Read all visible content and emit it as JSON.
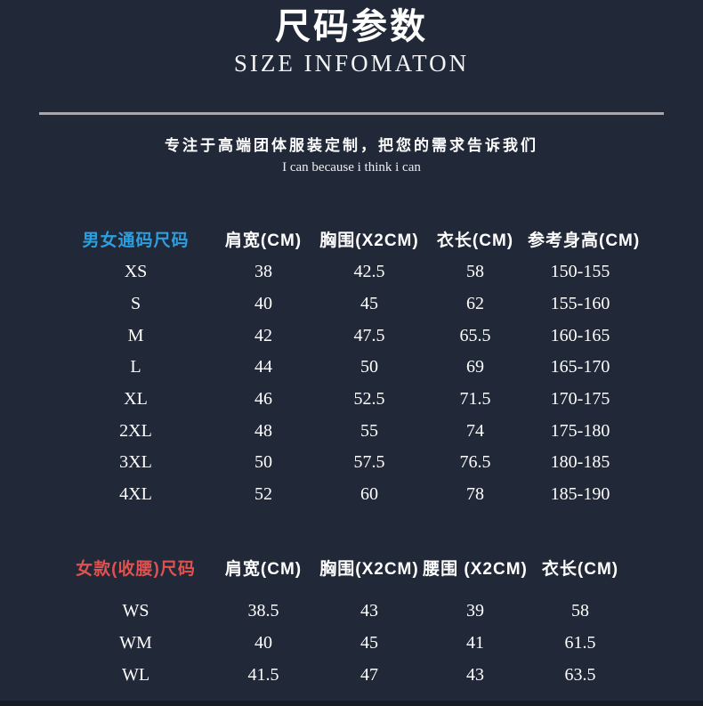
{
  "colors": {
    "background": "#212837",
    "divider": "#a6a6ac",
    "unisex_label": "#2b9fe0",
    "women_label": "#e05150",
    "text": "#ffffff"
  },
  "header": {
    "title_cn": "尺码参数",
    "title_en": "SIZE INFOMATON"
  },
  "intro": {
    "tagline": "专注于高端团体服装定制，把您的需求告诉我们",
    "slogan": "I can because i think i can"
  },
  "unisex_table": {
    "label": "男女通码尺码",
    "columns": [
      "肩宽(CM)",
      "胸围(X2CM)",
      "衣长(CM)",
      "参考身高(CM)"
    ],
    "rows": [
      {
        "size": "XS",
        "values": [
          "38",
          "42.5",
          "58",
          "150-155"
        ]
      },
      {
        "size": "S",
        "values": [
          "40",
          "45",
          "62",
          "155-160"
        ]
      },
      {
        "size": "M",
        "values": [
          "42",
          "47.5",
          "65.5",
          "160-165"
        ]
      },
      {
        "size": "L",
        "values": [
          "44",
          "50",
          "69",
          "165-170"
        ]
      },
      {
        "size": "XL",
        "values": [
          "46",
          "52.5",
          "71.5",
          "170-175"
        ]
      },
      {
        "size": "2XL",
        "values": [
          "48",
          "55",
          "74",
          "175-180"
        ]
      },
      {
        "size": "3XL",
        "values": [
          "50",
          "57.5",
          "76.5",
          "180-185"
        ]
      },
      {
        "size": "4XL",
        "values": [
          "52",
          "60",
          "78",
          "185-190"
        ]
      }
    ]
  },
  "women_table": {
    "label": "女款(收腰)尺码",
    "columns": [
      "肩宽(CM)",
      "胸围(X2CM)",
      "腰围 (X2CM)",
      "衣长(CM)"
    ],
    "rows": [
      {
        "size": "WS",
        "values": [
          "38.5",
          "43",
          "39",
          "58"
        ]
      },
      {
        "size": "WM",
        "values": [
          "40",
          "45",
          "41",
          "61.5"
        ]
      },
      {
        "size": "WL",
        "values": [
          "41.5",
          "47",
          "43",
          "63.5"
        ]
      }
    ]
  }
}
